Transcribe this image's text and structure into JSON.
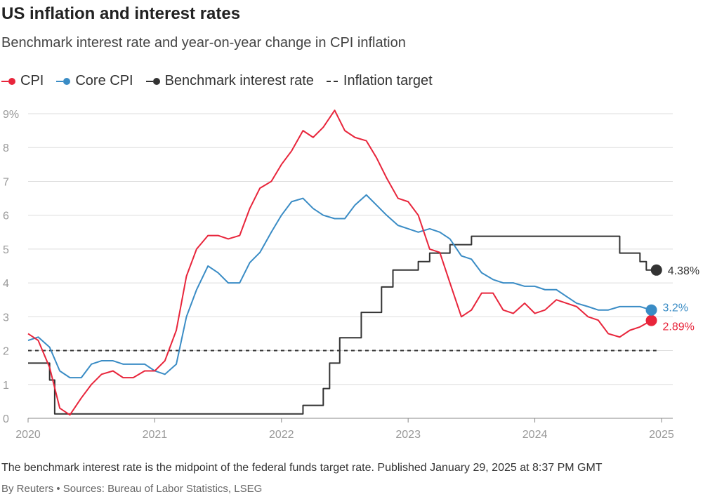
{
  "header": {
    "title": "US inflation and interest rates",
    "subtitle": "Benchmark interest rate and year-on-year change in CPI inflation"
  },
  "footer": {
    "note": "The benchmark interest rate is the midpoint of the federal funds target rate. Published January 29, 2025 at 8:37 PM GMT",
    "byline": "By Reuters • Sources: Bureau of Labor Statistics, LSEG"
  },
  "colors": {
    "cpi": "#e8253b",
    "core": "#3a8cc5",
    "rate": "#333333",
    "target": "#333333",
    "grid": "#dddddd",
    "tick": "#999999"
  },
  "chart_data": {
    "type": "line",
    "title": "US inflation and interest rates",
    "subtitle": "Benchmark interest rate and year-on-year change in CPI inflation",
    "x_unit": "year (decimal)",
    "xlim": [
      2020,
      2025.1
    ],
    "ylim": [
      0,
      9
    ],
    "x_ticks": [
      2020,
      2021,
      2022,
      2023,
      2024,
      2025
    ],
    "x_tick_labels": [
      "2020",
      "2021",
      "2022",
      "2023",
      "2024",
      "2025"
    ],
    "y_ticks": [
      0,
      1,
      2,
      3,
      4,
      5,
      6,
      7,
      8,
      9
    ],
    "y_tick_labels": [
      "0",
      "1",
      "2",
      "3",
      "4",
      "5",
      "6",
      "7",
      "8",
      "9%"
    ],
    "grid": "horizontal",
    "legend": "top-left",
    "series": [
      {
        "name": "CPI",
        "style": "line",
        "end_label": "2.89%",
        "points": [
          [
            2020.0,
            2.5
          ],
          [
            2020.08,
            2.3
          ],
          [
            2020.17,
            1.5
          ],
          [
            2020.25,
            0.3
          ],
          [
            2020.33,
            0.1
          ],
          [
            2020.42,
            0.6
          ],
          [
            2020.5,
            1.0
          ],
          [
            2020.58,
            1.3
          ],
          [
            2020.67,
            1.4
          ],
          [
            2020.75,
            1.2
          ],
          [
            2020.83,
            1.2
          ],
          [
            2020.92,
            1.4
          ],
          [
            2021.0,
            1.4
          ],
          [
            2021.08,
            1.7
          ],
          [
            2021.17,
            2.6
          ],
          [
            2021.25,
            4.2
          ],
          [
            2021.33,
            5.0
          ],
          [
            2021.42,
            5.4
          ],
          [
            2021.5,
            5.4
          ],
          [
            2021.58,
            5.3
          ],
          [
            2021.67,
            5.4
          ],
          [
            2021.75,
            6.2
          ],
          [
            2021.83,
            6.8
          ],
          [
            2021.92,
            7.0
          ],
          [
            2022.0,
            7.5
          ],
          [
            2022.08,
            7.9
          ],
          [
            2022.17,
            8.5
          ],
          [
            2022.25,
            8.3
          ],
          [
            2022.33,
            8.6
          ],
          [
            2022.42,
            9.1
          ],
          [
            2022.5,
            8.5
          ],
          [
            2022.58,
            8.3
          ],
          [
            2022.67,
            8.2
          ],
          [
            2022.75,
            7.7
          ],
          [
            2022.83,
            7.1
          ],
          [
            2022.92,
            6.5
          ],
          [
            2023.0,
            6.4
          ],
          [
            2023.08,
            6.0
          ],
          [
            2023.17,
            5.0
          ],
          [
            2023.25,
            4.9
          ],
          [
            2023.33,
            4.0
          ],
          [
            2023.42,
            3.0
          ],
          [
            2023.5,
            3.2
          ],
          [
            2023.58,
            3.7
          ],
          [
            2023.67,
            3.7
          ],
          [
            2023.75,
            3.2
          ],
          [
            2023.83,
            3.1
          ],
          [
            2023.92,
            3.4
          ],
          [
            2024.0,
            3.1
          ],
          [
            2024.08,
            3.2
          ],
          [
            2024.17,
            3.5
          ],
          [
            2024.25,
            3.4
          ],
          [
            2024.33,
            3.3
          ],
          [
            2024.42,
            3.0
          ],
          [
            2024.5,
            2.9
          ],
          [
            2024.58,
            2.5
          ],
          [
            2024.67,
            2.4
          ],
          [
            2024.75,
            2.6
          ],
          [
            2024.83,
            2.7
          ],
          [
            2024.92,
            2.89
          ]
        ]
      },
      {
        "name": "Core CPI",
        "style": "line",
        "end_label": "3.2%",
        "points": [
          [
            2020.0,
            2.3
          ],
          [
            2020.08,
            2.4
          ],
          [
            2020.17,
            2.1
          ],
          [
            2020.25,
            1.4
          ],
          [
            2020.33,
            1.2
          ],
          [
            2020.42,
            1.2
          ],
          [
            2020.5,
            1.6
          ],
          [
            2020.58,
            1.7
          ],
          [
            2020.67,
            1.7
          ],
          [
            2020.75,
            1.6
          ],
          [
            2020.83,
            1.6
          ],
          [
            2020.92,
            1.6
          ],
          [
            2021.0,
            1.4
          ],
          [
            2021.08,
            1.3
          ],
          [
            2021.17,
            1.6
          ],
          [
            2021.25,
            3.0
          ],
          [
            2021.33,
            3.8
          ],
          [
            2021.42,
            4.5
          ],
          [
            2021.5,
            4.3
          ],
          [
            2021.58,
            4.0
          ],
          [
            2021.67,
            4.0
          ],
          [
            2021.75,
            4.6
          ],
          [
            2021.83,
            4.9
          ],
          [
            2021.92,
            5.5
          ],
          [
            2022.0,
            6.0
          ],
          [
            2022.08,
            6.4
          ],
          [
            2022.17,
            6.5
          ],
          [
            2022.25,
            6.2
          ],
          [
            2022.33,
            6.0
          ],
          [
            2022.42,
            5.9
          ],
          [
            2022.5,
            5.9
          ],
          [
            2022.58,
            6.3
          ],
          [
            2022.67,
            6.6
          ],
          [
            2022.75,
            6.3
          ],
          [
            2022.83,
            6.0
          ],
          [
            2022.92,
            5.7
          ],
          [
            2023.0,
            5.6
          ],
          [
            2023.08,
            5.5
          ],
          [
            2023.17,
            5.6
          ],
          [
            2023.25,
            5.5
          ],
          [
            2023.33,
            5.3
          ],
          [
            2023.42,
            4.8
          ],
          [
            2023.5,
            4.7
          ],
          [
            2023.58,
            4.3
          ],
          [
            2023.67,
            4.1
          ],
          [
            2023.75,
            4.0
          ],
          [
            2023.83,
            4.0
          ],
          [
            2023.92,
            3.9
          ],
          [
            2024.0,
            3.9
          ],
          [
            2024.08,
            3.8
          ],
          [
            2024.17,
            3.8
          ],
          [
            2024.25,
            3.6
          ],
          [
            2024.33,
            3.4
          ],
          [
            2024.42,
            3.3
          ],
          [
            2024.5,
            3.2
          ],
          [
            2024.58,
            3.2
          ],
          [
            2024.67,
            3.3
          ],
          [
            2024.75,
            3.3
          ],
          [
            2024.83,
            3.3
          ],
          [
            2024.92,
            3.2
          ]
        ]
      },
      {
        "name": "Benchmark interest rate",
        "style": "step",
        "end_label": "4.38%",
        "points": [
          [
            2020.0,
            1.63
          ],
          [
            2020.17,
            1.13
          ],
          [
            2020.21,
            0.13
          ],
          [
            2022.17,
            0.38
          ],
          [
            2022.33,
            0.88
          ],
          [
            2022.38,
            1.63
          ],
          [
            2022.46,
            2.38
          ],
          [
            2022.63,
            3.13
          ],
          [
            2022.79,
            3.88
          ],
          [
            2022.88,
            4.38
          ],
          [
            2023.08,
            4.63
          ],
          [
            2023.17,
            4.88
          ],
          [
            2023.33,
            5.13
          ],
          [
            2023.5,
            5.38
          ],
          [
            2024.67,
            4.88
          ],
          [
            2024.83,
            4.63
          ],
          [
            2024.88,
            4.38
          ],
          [
            2024.96,
            4.38
          ]
        ]
      },
      {
        "name": "Inflation target",
        "style": "dashed",
        "points": [
          [
            2020.0,
            2.0
          ],
          [
            2024.96,
            2.0
          ]
        ]
      }
    ]
  }
}
